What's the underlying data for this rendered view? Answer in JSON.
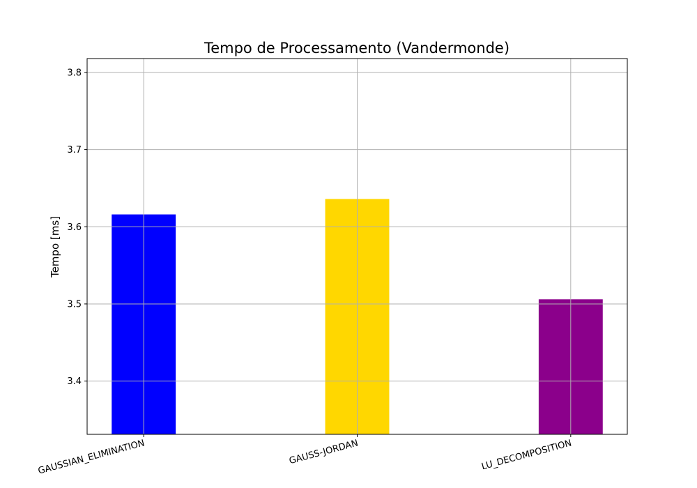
{
  "chart_data": {
    "type": "bar",
    "title": "Tempo de Processamento (Vandermonde)",
    "xlabel": "",
    "ylabel": "Tempo [ms]",
    "categories": [
      "GAUSSIAN_ELIMINATION",
      "GAUSS-JORDAN",
      "LU_DECOMPOSITION"
    ],
    "values": [
      3.616,
      3.636,
      3.506
    ],
    "colors": [
      "#0000ff",
      "#ffd700",
      "#8b008b"
    ],
    "ylim": [
      3.331,
      3.818
    ],
    "yticks": [
      3.4,
      3.5,
      3.6,
      3.7,
      3.8
    ],
    "ytick_labels": [
      "3.4",
      "3.5",
      "3.6",
      "3.7",
      "3.8"
    ],
    "grid": true,
    "legend": false
  }
}
